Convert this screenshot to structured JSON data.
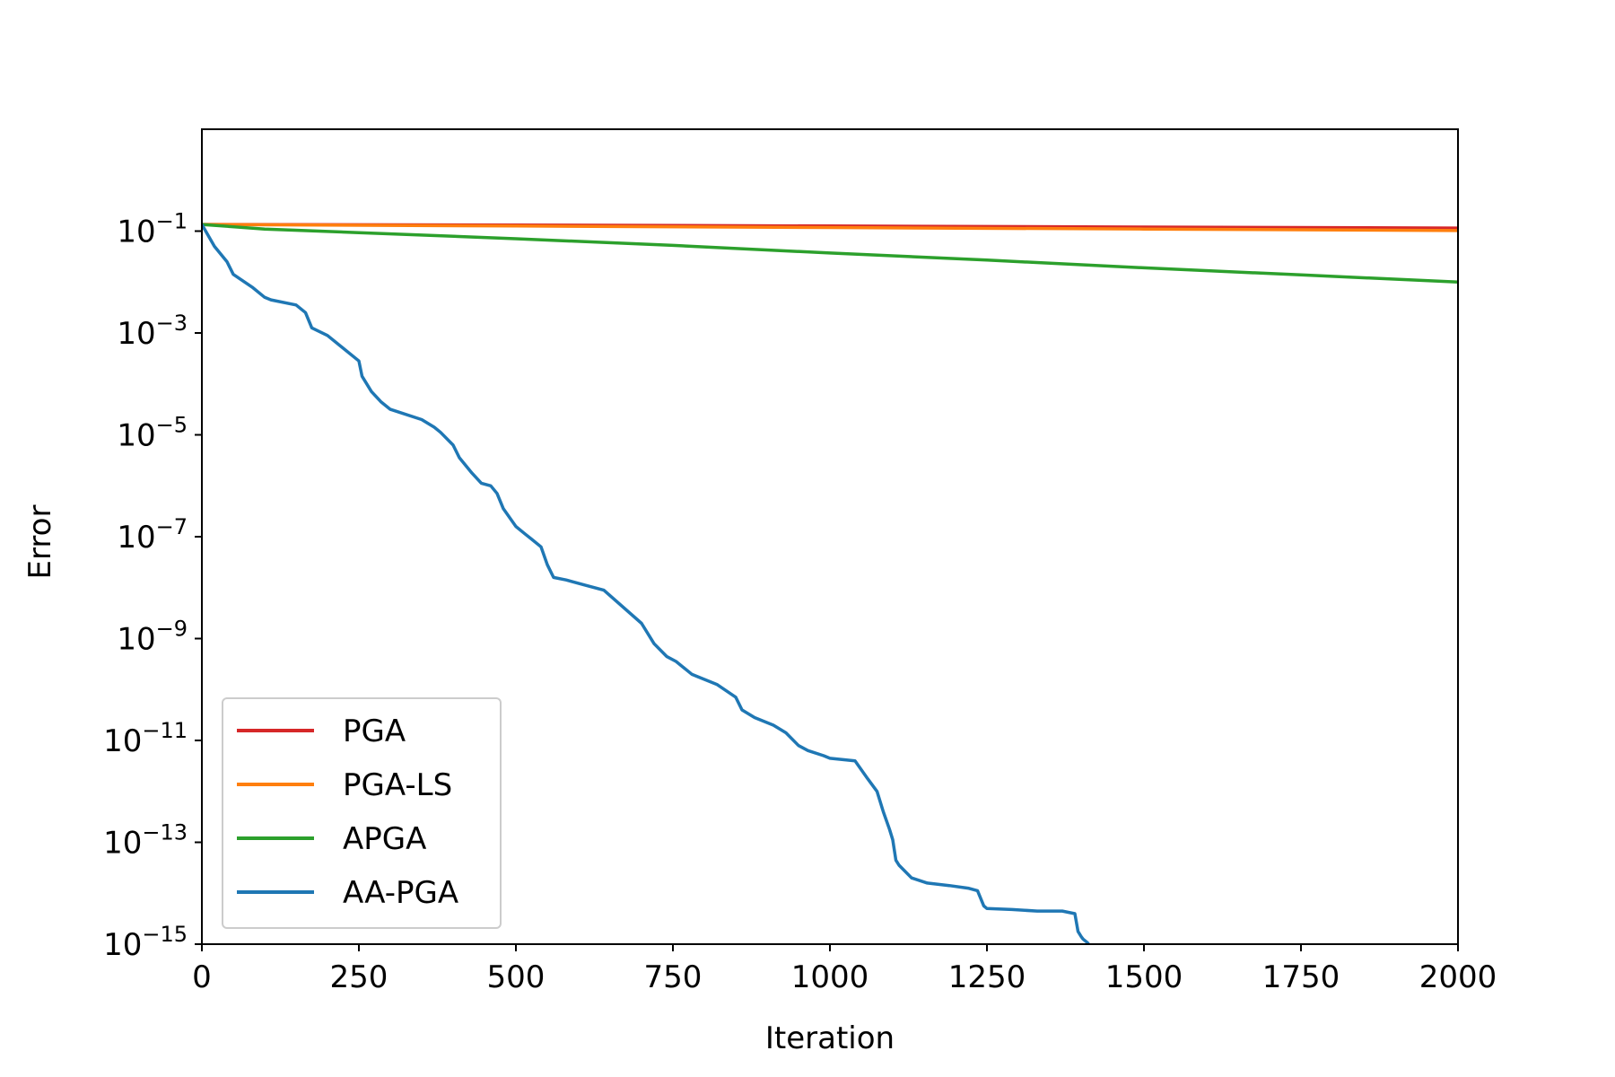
{
  "chart_data": {
    "type": "line",
    "title": "",
    "xlabel": "Iteration",
    "ylabel": "Error",
    "xlim": [
      0,
      2000
    ],
    "ylim_log10": [
      -15,
      1
    ],
    "yscale": "log",
    "grid": false,
    "legend_position": "lower-left",
    "x_ticks": [
      0,
      250,
      500,
      750,
      1000,
      1250,
      1500,
      1750,
      2000
    ],
    "x_tick_labels": [
      "0",
      "250",
      "500",
      "750",
      "1000",
      "1250",
      "1500",
      "1750",
      "2000"
    ],
    "y_ticks_log10": [
      -1,
      -3,
      -5,
      -7,
      -9,
      -11,
      -13,
      -15
    ],
    "y_tick_base": "10",
    "y_tick_exponents": [
      "−1",
      "−3",
      "−5",
      "−7",
      "−9",
      "−11",
      "−13",
      "−15"
    ],
    "series": [
      {
        "name": "PGA",
        "color": "#d62728",
        "x": [
          0,
          500,
          1000,
          1500,
          2000
        ],
        "log10_y": [
          -0.87,
          -0.88,
          -0.9,
          -0.92,
          -0.94
        ]
      },
      {
        "name": "PGA-LS",
        "color": "#ff7f0e",
        "x": [
          0,
          500,
          1000,
          1500,
          2000
        ],
        "log10_y": [
          -0.87,
          -0.9,
          -0.93,
          -0.96,
          -0.99
        ]
      },
      {
        "name": "APGA",
        "color": "#2ca02c",
        "x": [
          0,
          100,
          250,
          500,
          750,
          1000,
          1250,
          1500,
          1750,
          2000
        ],
        "log10_y": [
          -0.87,
          -0.96,
          -1.03,
          -1.15,
          -1.28,
          -1.43,
          -1.57,
          -1.72,
          -1.86,
          -2.0
        ]
      },
      {
        "name": "AA-PGA",
        "color": "#1f77b4",
        "x": [
          0,
          20,
          40,
          50,
          80,
          100,
          110,
          150,
          165,
          175,
          200,
          225,
          250,
          255,
          270,
          285,
          300,
          350,
          370,
          380,
          400,
          410,
          430,
          445,
          460,
          470,
          480,
          500,
          515,
          525,
          540,
          550,
          560,
          580,
          610,
          640,
          700,
          720,
          740,
          755,
          780,
          790,
          820,
          850,
          860,
          880,
          910,
          930,
          950,
          965,
          990,
          1000,
          1040,
          1060,
          1075,
          1085,
          1095,
          1100,
          1105,
          1110,
          1130,
          1155,
          1190,
          1220,
          1235,
          1245,
          1250,
          1290,
          1330,
          1370,
          1390,
          1395,
          1400,
          1403,
          1410,
          1415
        ],
        "log10_y": [
          -0.87,
          -1.3,
          -1.6,
          -1.85,
          -2.1,
          -2.3,
          -2.35,
          -2.45,
          -2.6,
          -2.9,
          -3.05,
          -3.3,
          -3.55,
          -3.85,
          -4.15,
          -4.35,
          -4.5,
          -4.7,
          -4.85,
          -4.95,
          -5.2,
          -5.45,
          -5.75,
          -5.95,
          -6.0,
          -6.15,
          -6.45,
          -6.8,
          -6.95,
          -7.05,
          -7.2,
          -7.55,
          -7.8,
          -7.85,
          -7.95,
          -8.05,
          -8.7,
          -9.1,
          -9.35,
          -9.45,
          -9.7,
          -9.75,
          -9.9,
          -10.15,
          -10.4,
          -10.55,
          -10.7,
          -10.85,
          -11.1,
          -11.2,
          -11.3,
          -11.35,
          -11.4,
          -11.75,
          -12.0,
          -12.4,
          -12.75,
          -12.95,
          -13.35,
          -13.45,
          -13.7,
          -13.8,
          -13.85,
          -13.9,
          -13.95,
          -14.25,
          -14.3,
          -14.32,
          -14.35,
          -14.35,
          -14.4,
          -14.75,
          -14.85,
          -14.9,
          -14.97,
          -15.05
        ]
      }
    ]
  }
}
